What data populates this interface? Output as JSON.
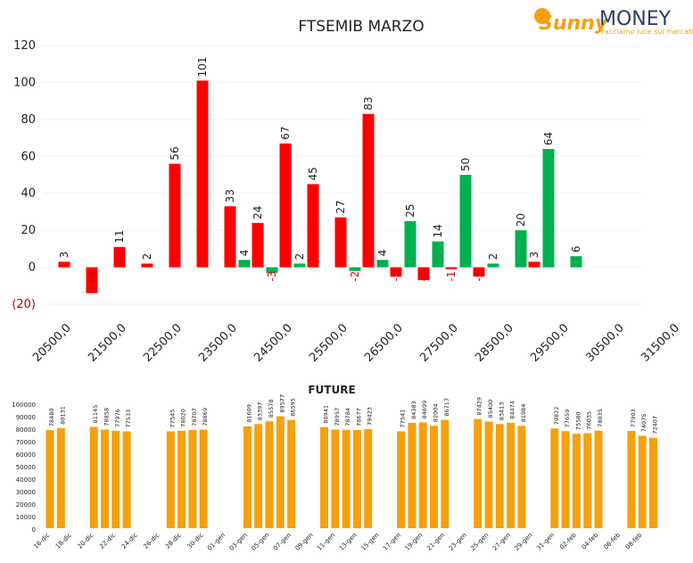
{
  "logo": {
    "brand": "Sunny",
    "name": "MONEY",
    "tagline": "Facciamo luce sui mercati"
  },
  "chart_data": [
    {
      "type": "bar",
      "title": "FTSEMIB MARZO",
      "categories": [
        "20500,0",
        null,
        "21500,0",
        null,
        "22500,0",
        null,
        "23500,0",
        null,
        "24500,0",
        null,
        "25500,0",
        null,
        "26500,0",
        null,
        "27500,0",
        null,
        "28500,0",
        null,
        "29500,0",
        null,
        "30500,0",
        null,
        "31500,0"
      ],
      "series": [
        {
          "color": "#ff0000",
          "values": [
            3,
            -14,
            11,
            2,
            56,
            101,
            33,
            24,
            67,
            45,
            27,
            83,
            -5,
            -7,
            -1,
            -5,
            null,
            3,
            null,
            null,
            null,
            null,
            null
          ]
        },
        {
          "color": "#00b050",
          "values": [
            null,
            null,
            null,
            null,
            null,
            null,
            4,
            -3,
            2,
            null,
            -2,
            4,
            25,
            14,
            50,
            2,
            20,
            64,
            6,
            null,
            null,
            null,
            null
          ]
        }
      ],
      "ylim": [
        -20,
        120
      ],
      "yticks": [
        {
          "value": -20,
          "label": "(20)"
        },
        0,
        20,
        40,
        60,
        80,
        100,
        120
      ],
      "grid": true
    },
    {
      "type": "bar",
      "title": "FUTURE",
      "color": "#f5a00f",
      "categories": [
        "16-dic",
        null,
        "18-dic",
        null,
        "20-dic",
        null,
        "22-dic",
        null,
        "24-dic",
        null,
        "26-dic",
        null,
        "28-dic",
        null,
        "30-dic",
        null,
        "01-gen",
        null,
        "03-gen",
        null,
        "05-gen",
        null,
        "07-gen",
        null,
        "09-gen",
        null,
        "11-gen",
        null,
        "13-gen",
        null,
        "15-gen",
        null,
        "17-gen",
        null,
        "19-gen",
        null,
        "21-gen",
        null,
        "23-gen",
        null,
        "25-gen",
        null,
        "27-gen",
        null,
        "29-gen",
        null,
        "31-gen",
        null,
        "02-feb",
        null,
        "04-feb",
        null,
        "06-feb",
        null,
        "08-feb",
        null
      ],
      "values": [
        78480,
        80131,
        null,
        null,
        81145,
        78858,
        77976,
        77533,
        null,
        null,
        null,
        77545,
        78020,
        78707,
        78869,
        null,
        null,
        null,
        81609,
        83397,
        85578,
        89577,
        86595,
        null,
        null,
        80941,
        78957,
        78784,
        78677,
        79423,
        null,
        null,
        77541,
        84383,
        84699,
        82004,
        86717,
        null,
        null,
        87429,
        85400,
        83413,
        84474,
        81984,
        null,
        null,
        79822,
        77659,
        75580,
        76035,
        78035,
        null,
        null,
        77903,
        74075,
        72407
      ],
      "ylim": [
        0,
        100000
      ],
      "yticks": [
        0,
        10000,
        20000,
        30000,
        40000,
        50000,
        60000,
        70000,
        80000,
        90000,
        100000
      ]
    }
  ]
}
